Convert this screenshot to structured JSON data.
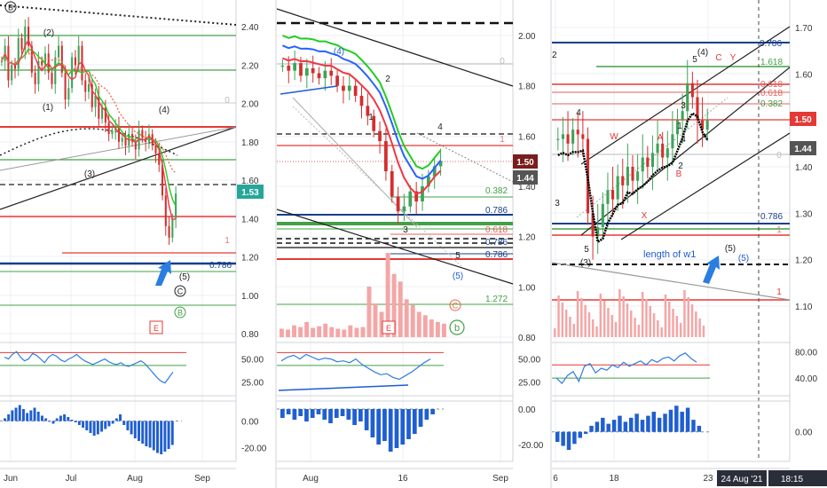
{
  "colors": {
    "background": "#ffffff",
    "grid": "#eceff3",
    "divider": "#d0d3da",
    "axis_text": "#333333",
    "red": "#e53935",
    "green": "#43a047",
    "blue": "#1e5bd6",
    "navy": "#173f8a",
    "candle_up": "#3fa35a",
    "candle_down": "#d32f2f",
    "ma_red": "#f23645",
    "ma_green": "#22cc22",
    "ma_blue": "#2962ff",
    "rsi_line": "#2f7de0",
    "histogram": "#1f5fd0",
    "volume": "#f4a6a6",
    "price_tag_dark": "#7a1d1d",
    "price_tag_gray": "#555555",
    "price_tag_red": "#e53935",
    "price_tag_teal": "#26a69a",
    "arrow": "#2a7de1",
    "date_tag": "#2a2e39"
  },
  "chart_data": [
    {
      "panel": "left",
      "type": "candlestick",
      "x_ticks": [
        "Jun",
        "Jul",
        "Aug",
        "Sep"
      ],
      "y_ticks": [
        "2.40",
        "2.20",
        "2.00",
        "1.80",
        "1.60",
        "1.40",
        "1.20",
        "1.00",
        "0.80"
      ],
      "ylim": [
        0.77,
        2.5
      ],
      "close_series": [
        2.22,
        2.3,
        2.12,
        2.2,
        2.18,
        2.34,
        2.28,
        2.4,
        2.3,
        2.16,
        2.1,
        2.22,
        2.2,
        2.26,
        2.16,
        2.1,
        2.24,
        2.3,
        2.16,
        2.02,
        2.08,
        2.24,
        2.2,
        2.3,
        2.12,
        2.06,
        2.1,
        1.98,
        2.04,
        1.92,
        1.98,
        1.9,
        1.84,
        1.86,
        1.88,
        1.8,
        1.82,
        1.78,
        1.84,
        1.8,
        1.76,
        1.86,
        1.82,
        1.8,
        1.84,
        1.78,
        1.74,
        1.68,
        1.52,
        1.36,
        1.3,
        1.4,
        1.53
      ],
      "price_label": "1.53",
      "wave_labels": [
        "B",
        "(2)",
        "(1)",
        "(3)",
        "(4)",
        "(5)",
        "C",
        "B",
        "E"
      ],
      "annotations": [
        "0",
        "1",
        "0.786"
      ],
      "rsi_ticks": [
        "50.00",
        "25.00"
      ],
      "rsi": [
        52,
        50,
        55,
        58,
        52,
        48,
        50,
        56,
        54,
        50,
        46,
        52,
        55,
        53,
        49,
        47,
        50,
        52,
        55,
        51,
        48,
        46,
        44,
        46,
        48,
        50,
        47,
        45,
        44,
        46,
        43,
        42,
        44,
        46,
        48,
        45,
        40,
        35,
        30,
        26,
        24,
        30,
        36
      ],
      "macd_ticks": [
        "0.00",
        "-20.00"
      ],
      "macd": [
        2,
        5,
        8,
        10,
        12,
        9,
        6,
        8,
        10,
        7,
        4,
        2,
        0,
        -2,
        2,
        4,
        5,
        3,
        1,
        -1,
        -3,
        -5,
        -7,
        -9,
        -11,
        -10,
        -8,
        -6,
        -4,
        -2,
        2,
        5,
        -3,
        -7,
        -10,
        -13,
        -15,
        -17,
        -19,
        -20,
        -22,
        -24,
        -25,
        -23,
        -21,
        -18
      ]
    },
    {
      "panel": "middle",
      "type": "candlestick",
      "x_ticks": [
        "Aug",
        "16",
        "Sep"
      ],
      "y_ticks": [
        "2.00",
        "1.80",
        "1.60",
        "1.40",
        "1.20",
        "1.00",
        "0.80"
      ],
      "ylim": [
        0.78,
        2.14
      ],
      "close_series": [
        1.88,
        1.86,
        1.89,
        1.84,
        1.87,
        1.85,
        1.83,
        1.86,
        1.84,
        1.8,
        1.78,
        1.8,
        1.76,
        1.72,
        1.68,
        1.62,
        1.58,
        1.46,
        1.36,
        1.3,
        1.32,
        1.38,
        1.34,
        1.4,
        1.44,
        1.48,
        1.5
      ],
      "price_labels": [
        "1.50",
        "1.44"
      ],
      "wave_labels": [
        "(4)",
        "2",
        "1",
        "4",
        "3",
        "5",
        "(5)",
        "C",
        "b",
        "E"
      ],
      "annotations": [
        "0",
        "1",
        "0.382",
        "0.786",
        "0.618",
        "0.786",
        "0.786",
        "1.272"
      ],
      "volume": [
        10,
        9,
        14,
        12,
        18,
        11,
        13,
        16,
        12,
        10,
        9,
        14,
        11,
        12,
        60,
        40,
        30,
        100,
        75,
        66,
        45,
        38,
        30,
        26,
        21,
        18,
        16
      ],
      "rsi_ticks": [
        "50.00",
        "25.00"
      ],
      "rsi": [
        48,
        52,
        54,
        50,
        55,
        52,
        49,
        51,
        50,
        47,
        48,
        46,
        50,
        44,
        40,
        36,
        33,
        34,
        30,
        28,
        32,
        36,
        41,
        46,
        50
      ],
      "macd_ticks": [
        "0.00",
        "-20.00"
      ],
      "macd": [
        -5,
        -3,
        -6,
        -4,
        -7,
        -5,
        -3,
        -6,
        -8,
        -5,
        -4,
        -6,
        -9,
        -7,
        -12,
        -16,
        -20,
        -18,
        -24,
        -22,
        -20,
        -17,
        -14,
        -10,
        -6,
        -3
      ]
    },
    {
      "panel": "right",
      "type": "candlestick",
      "x_ticks": [
        "6",
        "18",
        "23"
      ],
      "y_ticks": [
        "1.70",
        "1.60",
        "1.50",
        "1.40",
        "1.30",
        "1.20",
        "1.10"
      ],
      "ylim": [
        1.07,
        1.75
      ],
      "close_series": [
        1.46,
        1.47,
        1.45,
        1.48,
        1.47,
        1.46,
        1.3,
        1.25,
        1.27,
        1.32,
        1.35,
        1.33,
        1.38,
        1.36,
        1.4,
        1.37,
        1.39,
        1.42,
        1.4,
        1.43,
        1.45,
        1.42,
        1.44,
        1.47,
        1.5,
        1.52,
        1.58,
        1.55,
        1.5,
        1.48,
        1.5
      ],
      "price_labels": [
        "1.50",
        "1.44"
      ],
      "wave_labels": [
        "2",
        "4",
        "3",
        "5",
        "W",
        "X",
        "A",
        "B",
        "C",
        "Y",
        "(4)",
        "(5)",
        "(5)",
        "1",
        "2",
        "3",
        "4",
        "5",
        "(3)"
      ],
      "annotations": [
        "0.786",
        "1.618",
        "0.618",
        "0.618",
        "0.382",
        "0",
        "1",
        "0.786",
        "1"
      ],
      "text_note": "length of w1",
      "rsi_ticks": [
        "80.00",
        "40.00"
      ],
      "rsi": [
        40,
        32,
        44,
        50,
        35,
        58,
        62,
        48,
        55,
        52,
        60,
        56,
        64,
        58,
        62,
        66,
        60,
        68,
        64,
        70,
        72,
        66,
        74,
        78,
        70,
        64
      ],
      "macd_ticks": [
        "0.00"
      ],
      "macd": [
        -10,
        -14,
        -18,
        -12,
        -6,
        -2,
        6,
        10,
        14,
        8,
        12,
        16,
        10,
        14,
        18,
        12,
        16,
        20,
        14,
        18,
        22,
        26,
        20,
        24,
        12,
        6
      ],
      "date_tag": "24 Aug '21",
      "time_tag": "18:15"
    }
  ]
}
